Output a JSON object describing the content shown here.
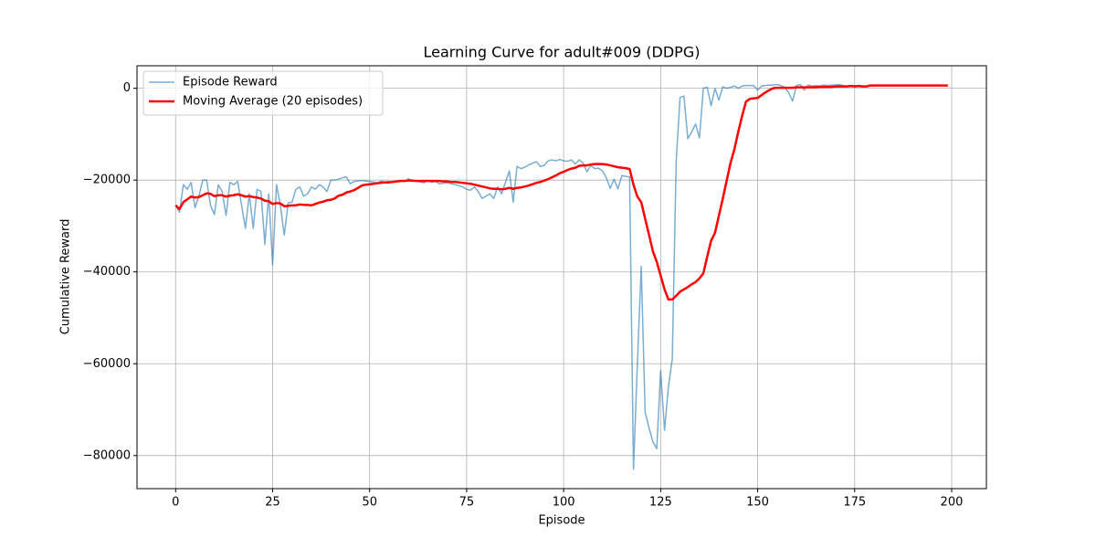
{
  "chart_data": {
    "type": "line",
    "title": "Learning Curve for adult#009 (DDPG)",
    "xlabel": "Episode",
    "ylabel": "Cumulative Reward",
    "x": [
      0,
      1,
      2,
      3,
      4,
      5,
      6,
      7,
      8,
      9,
      10,
      11,
      12,
      13,
      14,
      15,
      16,
      17,
      18,
      19,
      20,
      21,
      22,
      23,
      24,
      25,
      26,
      27,
      28,
      29,
      30,
      31,
      32,
      33,
      34,
      35,
      36,
      37,
      38,
      39,
      40,
      41,
      42,
      43,
      44,
      45,
      46,
      47,
      48,
      49,
      50,
      51,
      52,
      53,
      54,
      55,
      56,
      57,
      58,
      59,
      60,
      61,
      62,
      63,
      64,
      65,
      66,
      67,
      68,
      69,
      70,
      71,
      72,
      73,
      74,
      75,
      76,
      77,
      78,
      79,
      80,
      81,
      82,
      83,
      84,
      85,
      86,
      87,
      88,
      89,
      90,
      91,
      92,
      93,
      94,
      95,
      96,
      97,
      98,
      99,
      100,
      101,
      102,
      103,
      104,
      105,
      106,
      107,
      108,
      109,
      110,
      111,
      112,
      113,
      114,
      115,
      116,
      117,
      118,
      119,
      120,
      121,
      122,
      123,
      124,
      125,
      126,
      127,
      128,
      129,
      130,
      131,
      132,
      133,
      134,
      135,
      136,
      137,
      138,
      139,
      140,
      141,
      142,
      143,
      144,
      145,
      146,
      147,
      148,
      149,
      150,
      151,
      152,
      153,
      154,
      155,
      156,
      157,
      158,
      159,
      160,
      161,
      162,
      163,
      164,
      165,
      166,
      167,
      168,
      169,
      170,
      171,
      172,
      173,
      174,
      175,
      176,
      177,
      178,
      179,
      180,
      181,
      182,
      183,
      184,
      185,
      186,
      187,
      188,
      189,
      190,
      191,
      192,
      193,
      194,
      195,
      196,
      197,
      198,
      199
    ],
    "series": [
      {
        "name": "Episode Reward",
        "color": "#1f77b4",
        "opacity": 0.6,
        "width": 1.5,
        "values": [
          -25500,
          -27000,
          -21000,
          -22000,
          -20500,
          -26000,
          -23500,
          -20000,
          -20000,
          -25500,
          -27500,
          -21000,
          -22500,
          -27700,
          -20500,
          -21000,
          -20300,
          -25500,
          -30500,
          -23000,
          -30500,
          -22000,
          -22500,
          -34000,
          -23000,
          -38500,
          -21000,
          -25500,
          -32000,
          -25000,
          -24800,
          -22000,
          -21500,
          -23500,
          -23000,
          -21500,
          -22000,
          -21000,
          -21500,
          -22500,
          -20000,
          -20000,
          -19800,
          -19500,
          -19300,
          -20800,
          -20300,
          -20200,
          -20100,
          -20200,
          -20300,
          -20400,
          -20600,
          -20200,
          -20400,
          -20300,
          -20500,
          -20200,
          -20100,
          -20300,
          -19700,
          -20300,
          -20200,
          -20400,
          -20600,
          -20000,
          -20500,
          -20300,
          -20800,
          -20700,
          -20600,
          -20800,
          -21000,
          -21200,
          -21500,
          -22000,
          -22200,
          -21500,
          -22500,
          -24000,
          -23500,
          -23000,
          -24000,
          -21500,
          -23000,
          -20500,
          -18000,
          -24800,
          -17000,
          -17500,
          -17200,
          -16700,
          -16300,
          -16000,
          -17000,
          -16800,
          -15800,
          -15600,
          -15800,
          -15500,
          -15800,
          -15900,
          -15600,
          -16500,
          -15600,
          -16300,
          -18200,
          -16800,
          -17500,
          -17400,
          -18000,
          -19500,
          -21800,
          -19800,
          -21900,
          -19000,
          -19200,
          -19300,
          -83000,
          -60000,
          -38800,
          -70500,
          -74000,
          -77000,
          -78500,
          -61500,
          -74500,
          -65000,
          -59000,
          -16000,
          -2000,
          -1700,
          -11000,
          -9500,
          -7800,
          -10800,
          0,
          200,
          -3800,
          0,
          -2600,
          300,
          0,
          200,
          500,
          0,
          500,
          600,
          600,
          600,
          -400,
          500,
          600,
          700,
          700,
          800,
          600,
          200,
          -1000,
          -2800,
          600,
          800,
          -400,
          700,
          500,
          600,
          500,
          700,
          600,
          700,
          700,
          800,
          600,
          400,
          500,
          600,
          500,
          300,
          400,
          600,
          600,
          600,
          600,
          600,
          600,
          600,
          600,
          600,
          600,
          600,
          600,
          600,
          600,
          600,
          600,
          600,
          600,
          600,
          600,
          600
        ]
      },
      {
        "name": "Moving Average (20 episodes)",
        "color": "#ff0000",
        "opacity": 1,
        "width": 2.5,
        "values": [
          -25500,
          -26300,
          -24800,
          -24200,
          -23600,
          -23800,
          -23700,
          -23300,
          -22900,
          -23000,
          -23500,
          -23300,
          -23300,
          -23600,
          -23400,
          -23300,
          -23100,
          -23300,
          -23600,
          -23500,
          -23700,
          -23800,
          -24000,
          -24500,
          -24600,
          -25200,
          -25000,
          -25100,
          -25700,
          -25600,
          -25500,
          -25500,
          -25300,
          -25400,
          -25400,
          -25500,
          -25200,
          -24900,
          -24700,
          -24400,
          -24300,
          -24000,
          -23400,
          -23200,
          -22700,
          -22500,
          -22200,
          -21700,
          -21200,
          -21000,
          -20900,
          -20800,
          -20700,
          -20600,
          -20500,
          -20500,
          -20400,
          -20300,
          -20200,
          -20200,
          -20100,
          -20100,
          -20200,
          -20200,
          -20200,
          -20200,
          -20200,
          -20200,
          -20200,
          -20300,
          -20300,
          -20400,
          -20400,
          -20500,
          -20600,
          -20700,
          -20800,
          -21000,
          -21200,
          -21400,
          -21600,
          -21800,
          -21900,
          -21900,
          -22000,
          -21900,
          -21700,
          -21900,
          -21700,
          -21600,
          -21400,
          -21200,
          -20900,
          -20600,
          -20400,
          -20100,
          -19800,
          -19400,
          -19000,
          -18500,
          -18200,
          -17800,
          -17500,
          -17300,
          -16900,
          -16800,
          -16800,
          -16600,
          -16500,
          -16500,
          -16500,
          -16600,
          -16800,
          -17000,
          -17200,
          -17300,
          -17400,
          -17600,
          -21000,
          -23600,
          -24800,
          -28400,
          -31900,
          -35500,
          -37800,
          -40800,
          -43800,
          -46000,
          -46000,
          -45200,
          -44300,
          -43800,
          -43300,
          -42700,
          -42200,
          -41400,
          -40300,
          -36700,
          -33200,
          -31500,
          -27800,
          -24100,
          -20200,
          -16300,
          -13300,
          -9500,
          -6000,
          -2900,
          -2300,
          -2200,
          -2100,
          -1500,
          -900,
          -400,
          0,
          100,
          100,
          100,
          100,
          100,
          200,
          200,
          200,
          200,
          200,
          200,
          300,
          300,
          300,
          300,
          400,
          400,
          400,
          400,
          500,
          400,
          500,
          400,
          400,
          600,
          600,
          600,
          600,
          600,
          600,
          600,
          600,
          600,
          600,
          600,
          600,
          600,
          600,
          600,
          600,
          600,
          600,
          600,
          600,
          600
        ]
      }
    ],
    "xlim": [
      -9.95,
      208.95
    ],
    "ylim": [
      -87200,
      4900
    ],
    "xticks": [
      0,
      25,
      50,
      75,
      100,
      125,
      150,
      175,
      200
    ],
    "yticks": [
      {
        "value": -80000,
        "label": "−80000"
      },
      {
        "value": -60000,
        "label": "−60000"
      },
      {
        "value": -40000,
        "label": "−40000"
      },
      {
        "value": -20000,
        "label": "−20000"
      },
      0
    ],
    "grid": true,
    "legend": "upper left"
  }
}
